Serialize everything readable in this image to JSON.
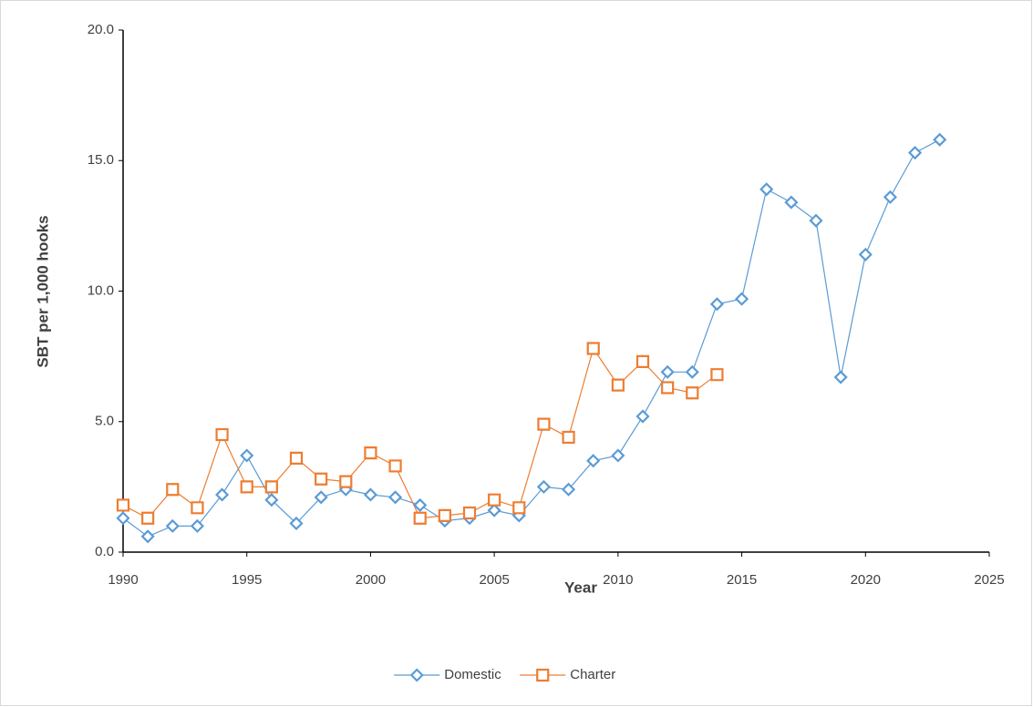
{
  "chart_data": {
    "type": "line",
    "xlabel": "Year",
    "ylabel": "SBT per 1,000 hooks",
    "x": [
      1990,
      1991,
      1992,
      1993,
      1994,
      1995,
      1996,
      1997,
      1998,
      1999,
      2000,
      2001,
      2002,
      2003,
      2004,
      2005,
      2006,
      2007,
      2008,
      2009,
      2010,
      2011,
      2012,
      2013,
      2014,
      2015,
      2016,
      2017,
      2018,
      2019,
      2020,
      2021,
      2022,
      2023
    ],
    "series": [
      {
        "name": "Domestic",
        "color": "#5b9bd5",
        "marker": "diamond",
        "values": [
          1.3,
          0.6,
          1.0,
          1.0,
          2.2,
          3.7,
          2.0,
          1.1,
          2.1,
          2.4,
          2.2,
          2.1,
          1.8,
          1.2,
          1.3,
          1.6,
          1.4,
          2.5,
          2.4,
          3.5,
          3.7,
          5.2,
          6.9,
          6.9,
          9.5,
          9.7,
          13.9,
          13.4,
          12.7,
          6.7,
          11.4,
          13.6,
          15.3,
          15.8
        ]
      },
      {
        "name": "Charter",
        "color": "#ed7d31",
        "marker": "square",
        "values": [
          1.8,
          1.3,
          2.4,
          1.7,
          4.5,
          2.5,
          2.5,
          3.6,
          2.8,
          2.7,
          3.8,
          3.3,
          1.3,
          1.4,
          1.5,
          2.0,
          1.7,
          4.9,
          4.4,
          7.8,
          6.4,
          7.3,
          6.3,
          6.1,
          6.8,
          null,
          null,
          null,
          null,
          null,
          null,
          null,
          null,
          null
        ]
      }
    ],
    "xlim": [
      1990,
      2025
    ],
    "xticks": [
      1990,
      1995,
      2000,
      2005,
      2010,
      2015,
      2020,
      2025
    ],
    "ylim": [
      0,
      20
    ],
    "yticks": [
      {
        "value": 0,
        "label": "0.0"
      },
      {
        "value": 5,
        "label": "5.0"
      },
      {
        "value": 10,
        "label": "10.0"
      },
      {
        "value": 15,
        "label": "15.0"
      },
      {
        "value": 20,
        "label": "20.0"
      }
    ],
    "grid": false,
    "legend": "bottom"
  }
}
